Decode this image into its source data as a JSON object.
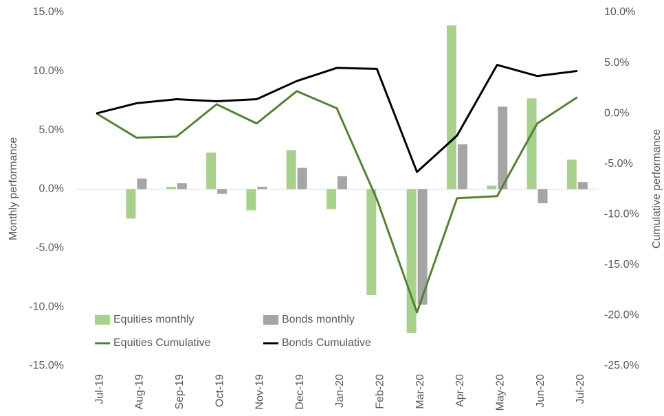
{
  "chart_data": {
    "type": "bar",
    "categories": [
      "Jul-19",
      "Aug-19",
      "Sep-19",
      "Oct-19",
      "Nov-19",
      "Dec-19",
      "Jan-20",
      "Feb-20",
      "Mar-20",
      "Apr-20",
      "May-20",
      "Jun-20",
      "Jul-20"
    ],
    "series": [
      {
        "name": "Equities monthly",
        "color": "#a9d18e",
        "type": "bar",
        "values": [
          0,
          -2.5,
          0.2,
          3.1,
          -1.8,
          3.3,
          -1.7,
          -9.0,
          -12.2,
          13.9,
          0.3,
          7.7,
          2.5
        ]
      },
      {
        "name": "Bonds monthly",
        "color": "#a5a5a5",
        "type": "bar",
        "values": [
          0,
          0.9,
          0.5,
          -0.4,
          0.2,
          1.8,
          1.1,
          0,
          -9.8,
          3.8,
          7.0,
          -1.2,
          0.6
        ]
      },
      {
        "name": "Equities Cumulative",
        "color": "#548235",
        "type": "line",
        "axis": "y2",
        "values": [
          0,
          -2.4,
          -2.3,
          0.9,
          -1.0,
          2.2,
          0.5,
          -8.5,
          -19.7,
          -8.4,
          -8.2,
          -1.0,
          1.6
        ]
      },
      {
        "name": "Bonds Cumulative",
        "color": "#000000",
        "type": "line",
        "axis": "y2",
        "values": [
          0,
          1.0,
          1.4,
          1.2,
          1.4,
          3.2,
          4.5,
          4.4,
          -5.8,
          -2.2,
          4.8,
          3.7,
          4.2
        ]
      }
    ],
    "ylabel": "Monthly performance",
    "y2label": "Cumulative performance",
    "ylim": [
      -15,
      15
    ],
    "yticks": [
      {
        "value": -15,
        "label": "-15.0%"
      },
      {
        "value": -10,
        "label": "-10.0%"
      },
      {
        "value": -5,
        "label": "-5.0%"
      },
      {
        "value": 0,
        "label": "0.0%"
      },
      {
        "value": 5,
        "label": "5.0%"
      },
      {
        "value": 10,
        "label": "10.0%"
      },
      {
        "value": 15,
        "label": "15.0%"
      }
    ],
    "y2lim": [
      -25,
      10
    ],
    "y2ticks": [
      {
        "value": -25,
        "label": "-25.0%"
      },
      {
        "value": -20,
        "label": "-20.0%"
      },
      {
        "value": -15,
        "label": "-15.0%"
      },
      {
        "value": -10,
        "label": "-10.0%"
      },
      {
        "value": -5,
        "label": "-5.0%"
      },
      {
        "value": 0,
        "label": "0.0%"
      },
      {
        "value": 5,
        "label": "5.0%"
      },
      {
        "value": 10,
        "label": "10.0%"
      }
    ],
    "legend": "lower left"
  }
}
